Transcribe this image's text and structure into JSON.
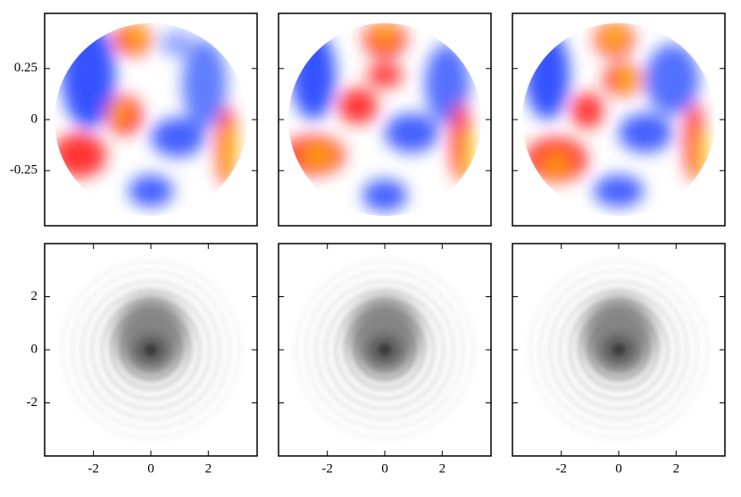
{
  "chart_data": [
    {
      "type": "image",
      "xlim": [
        -0.52,
        0.52
      ],
      "ylim": [
        -0.52,
        0.52
      ],
      "yticks": [
        0.25,
        0,
        -0.25
      ]
    },
    {
      "type": "image",
      "xlim": [
        -0.52,
        0.52
      ],
      "ylim": [
        -0.52,
        0.52
      ]
    },
    {
      "type": "image",
      "xlim": [
        -0.52,
        0.52
      ],
      "ylim": [
        -0.52,
        0.52
      ]
    },
    {
      "type": "image",
      "xlim": [
        -3.7,
        3.7
      ],
      "ylim": [
        -4,
        4
      ],
      "xticks": [
        -2,
        0,
        2
      ],
      "yticks": [
        2,
        0,
        -2
      ]
    },
    {
      "type": "image",
      "xlim": [
        -3.7,
        3.7
      ],
      "ylim": [
        -4,
        4
      ],
      "xticks": [
        -2,
        0,
        2
      ]
    },
    {
      "type": "image",
      "xlim": [
        -3.7,
        3.7
      ],
      "ylim": [
        -4,
        4
      ],
      "xticks": [
        -2,
        0,
        2
      ]
    }
  ]
}
